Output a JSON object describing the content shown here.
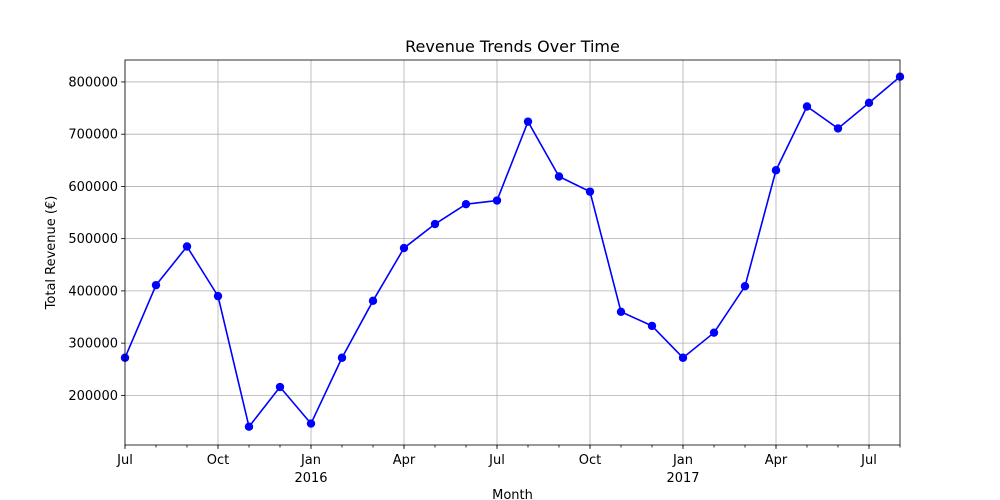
{
  "chart_data": {
    "type": "line",
    "title": "Revenue Trends Over Time",
    "xlabel": "Month",
    "ylabel": "Total Revenue (€)",
    "x": [
      "2015-07",
      "2015-08",
      "2015-09",
      "2015-10",
      "2015-11",
      "2015-12",
      "2016-01",
      "2016-02",
      "2016-03",
      "2016-04",
      "2016-05",
      "2016-06",
      "2016-07",
      "2016-08",
      "2016-09",
      "2016-10",
      "2016-11",
      "2016-12",
      "2017-01",
      "2017-02",
      "2017-03",
      "2017-04",
      "2017-05",
      "2017-06",
      "2017-07",
      "2017-08"
    ],
    "series": [
      {
        "values": [
          272000,
          411000,
          485000,
          390000,
          140000,
          216000,
          146000,
          272000,
          381000,
          482000,
          528000,
          566000,
          573000,
          724000,
          619000,
          590000,
          360000,
          333000,
          272000,
          320000,
          409000,
          631000,
          753000,
          711000,
          760000,
          810000
        ],
        "color": "#0000ff",
        "marker": "circle"
      }
    ],
    "xlim": [
      "2015-07",
      "2017-08"
    ],
    "ylim": [
      105000,
      842000
    ],
    "yticks": [
      200000,
      300000,
      400000,
      500000,
      600000,
      700000,
      800000
    ],
    "xticks": [
      {
        "x": "2015-07",
        "label": "Jul"
      },
      {
        "x": "2015-10",
        "label": "Oct"
      },
      {
        "x": "2016-01",
        "label": "Jan",
        "year": "2016"
      },
      {
        "x": "2016-04",
        "label": "Apr"
      },
      {
        "x": "2016-07",
        "label": "Jul"
      },
      {
        "x": "2016-10",
        "label": "Oct"
      },
      {
        "x": "2017-01",
        "label": "Jan",
        "year": "2017"
      },
      {
        "x": "2017-04",
        "label": "Apr"
      },
      {
        "x": "2017-07",
        "label": "Jul"
      }
    ],
    "grid": true,
    "legend": "none"
  }
}
